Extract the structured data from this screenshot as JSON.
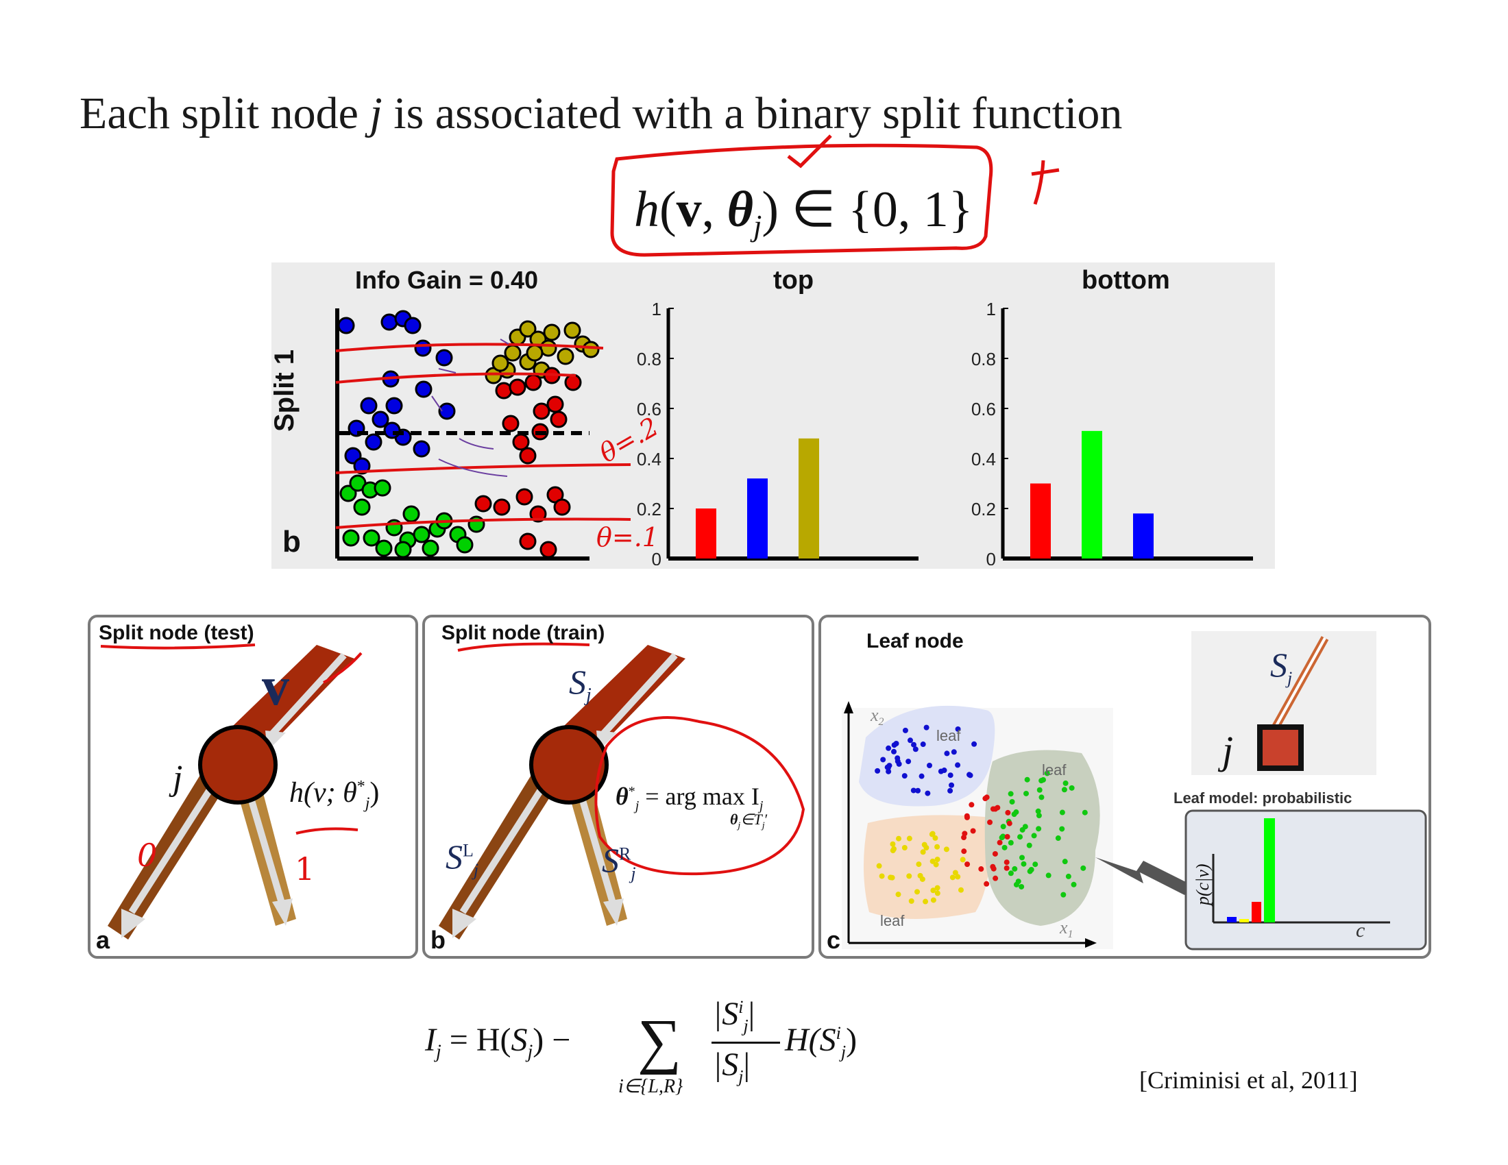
{
  "heading": {
    "prefix": "Each split node ",
    "var": "j",
    "suffix": " is associated with a binary split function"
  },
  "main_formula": {
    "h": "h",
    "open": "(",
    "v": "v",
    "comma": ", ",
    "theta": "θ",
    "theta_sub": "j",
    "rest": ") ∈ {0, 1}"
  },
  "chart_data": [
    {
      "type": "scatter",
      "title": "Info Gain = 0.40",
      "ylabel": "Split 1",
      "panel_label": "b",
      "series": [
        {
          "name": "",
          "color": "#0000e0",
          "values": []
        },
        {
          "name": "",
          "color": "#b8a800",
          "values": []
        },
        {
          "name": "",
          "color": "#e00000",
          "values": []
        },
        {
          "name": "",
          "color": "#00d000",
          "values": []
        }
      ],
      "split_line": "dashed horizontal"
    },
    {
      "type": "bar",
      "title": "top",
      "ylim": [
        0,
        1
      ],
      "yticks": [
        "0",
        "0.2",
        "0.4",
        "0.6",
        "0.8",
        "1"
      ],
      "bars": [
        {
          "color": "#ff0000",
          "value": 0.2
        },
        {
          "color": "#0000ff",
          "value": 0.32
        },
        {
          "color": "#b8a800",
          "value": 0.48
        }
      ]
    },
    {
      "type": "bar",
      "title": "bottom",
      "ylim": [
        0,
        1
      ],
      "yticks": [
        "0",
        "0.2",
        "0.4",
        "0.6",
        "0.8",
        "1"
      ],
      "bars": [
        {
          "color": "#ff0000",
          "value": 0.3
        },
        {
          "color": "#00ff00",
          "value": 0.51
        },
        {
          "color": "#0000ff",
          "value": 0.18
        }
      ]
    }
  ],
  "annotations": {
    "theta_2": "θ=.2",
    "theta_1": "θ=.1",
    "zero": "0",
    "one": "1"
  },
  "panels": {
    "a": {
      "title": "Split node (test)",
      "letter": "a",
      "v": "v",
      "j": "j",
      "h": "h(v; θ",
      "h_sup": "*",
      "h_sub": "j",
      "h_close": ")"
    },
    "b": {
      "title": "Split node (train)",
      "letter": "b",
      "S": "S",
      "S_sub": "j",
      "SL": "S",
      "SL_sup": "L",
      "SL_sub": "j",
      "SR": "S",
      "SR_sup": "R",
      "SR_sub": "j",
      "theta_eq": "θ",
      "theta_sup": "*",
      "theta_sub": "j",
      "eq_rest": " = arg max I",
      "eq_sub": "j",
      "under": "θ",
      "under_sub": "j",
      "under_rest": "∈T",
      "under_rest_sub": "j",
      "under_prime": "′"
    },
    "c": {
      "title": "Leaf node",
      "letter": "c",
      "x1": "x",
      "x1_sub": "1",
      "x2": "x",
      "x2_sub": "2",
      "leaf": "leaf",
      "S": "S",
      "S_sub": "j",
      "j": "j",
      "model_label": "Leaf model: probabilistic",
      "p_label": "p(c|v)",
      "c_label": "c"
    }
  },
  "bottom_equation": {
    "lhs": "I",
    "lhs_sub": "j",
    "eq": " = H(",
    "S": "S",
    "S_sub": "j",
    "minus": ") −",
    "sum": "∑",
    "sum_sub": "i∈{L,R}",
    "num": "|S",
    "num_sup": "i",
    "num_sub": "j",
    "num_close": "|",
    "den": "|S",
    "den_sub": "j",
    "den_close": "|",
    "tail": "H(S",
    "tail_sup": "i",
    "tail_sub": "j",
    "tail_close": ")"
  },
  "citation": "[Criminisi et al, 2011]"
}
